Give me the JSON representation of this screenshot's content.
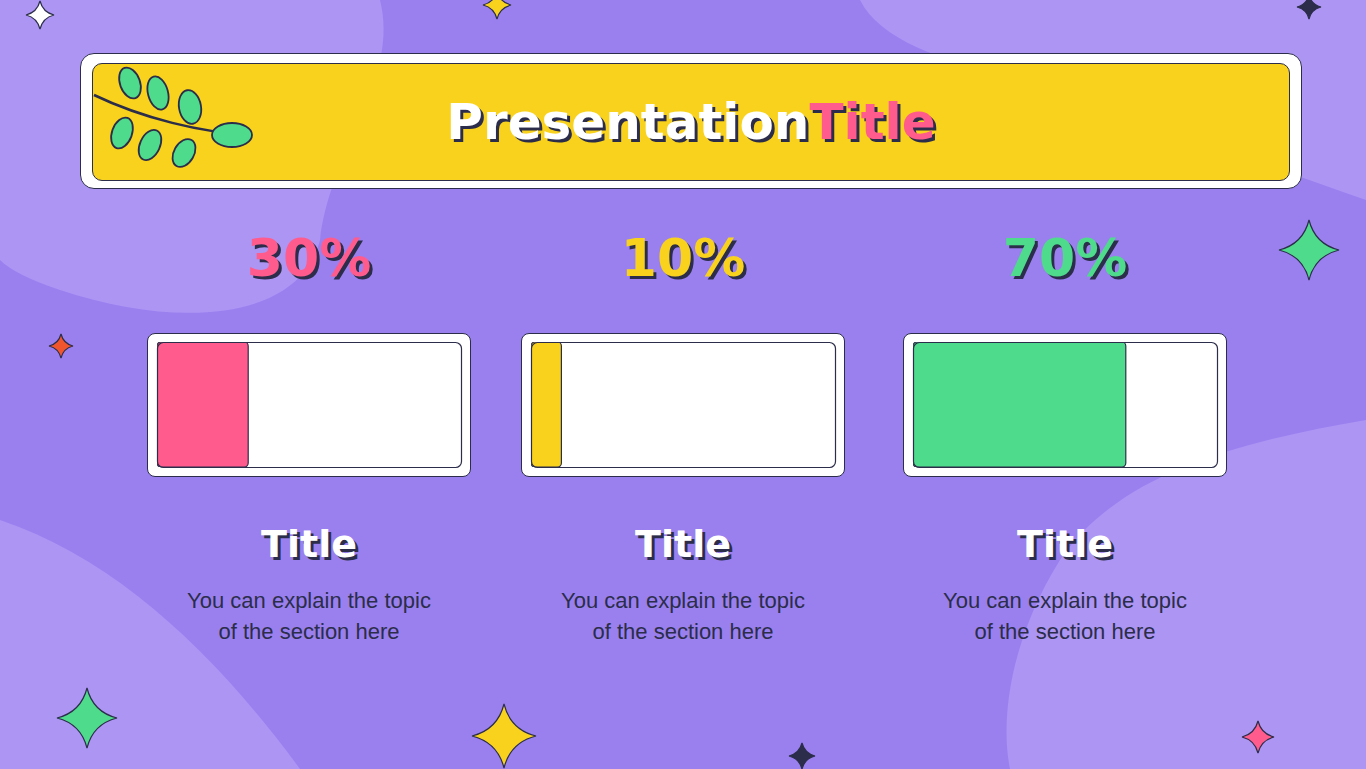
{
  "title": "Presentation Title",
  "chart_data": [
    {
      "type": "bar",
      "orientation": "horizontal",
      "title": "Title",
      "subtitle": "You can explain the topic of the section here",
      "values": [
        30
      ],
      "value_labels": [
        "30%"
      ],
      "color": "#ff5b8c",
      "xlim": [
        0,
        100
      ],
      "data_labels": true,
      "tick_labels": false
    },
    {
      "type": "bar",
      "orientation": "horizontal",
      "title": "Title",
      "subtitle": "You can explain the topic of the section here",
      "values": [
        10
      ],
      "value_labels": [
        "10%"
      ],
      "color": "#f8d21c",
      "xlim": [
        0,
        100
      ],
      "data_labels": true,
      "tick_labels": false
    },
    {
      "type": "bar",
      "orientation": "horizontal",
      "title": "Title",
      "subtitle": "You can explain the topic of the section here",
      "values": [
        70
      ],
      "value_labels": [
        "70%"
      ],
      "color": "#4edb8b",
      "xlim": [
        0,
        100
      ],
      "data_labels": true,
      "tick_labels": false
    }
  ]
}
